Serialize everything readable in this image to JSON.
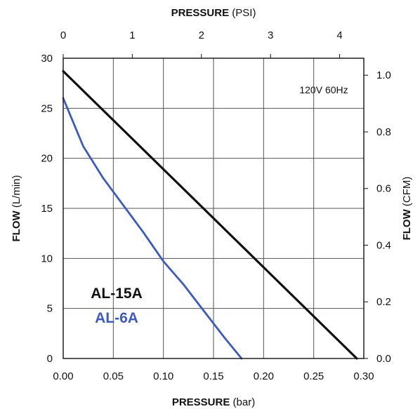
{
  "chart_data": {
    "type": "line",
    "title": "",
    "x_bottom": {
      "label": "PRESSURE",
      "unit": "(bar)",
      "range": [
        0,
        0.3
      ],
      "ticks": [
        "0.00",
        "0.05",
        "0.10",
        "0.15",
        "0.20",
        "0.25",
        "0.30"
      ]
    },
    "x_top": {
      "label": "PRESSURE",
      "unit": "(PSI)",
      "range": [
        0,
        4.35
      ],
      "ticks": [
        {
          "value": 0,
          "label": "0"
        },
        {
          "value": 1,
          "label": "1"
        },
        {
          "value": 2,
          "label": "2"
        },
        {
          "value": 3,
          "label": "3"
        },
        {
          "value": 4,
          "label": "4"
        }
      ]
    },
    "y_left": {
      "label": "FLOW",
      "unit": "(L/min)",
      "range": [
        0,
        30
      ],
      "ticks": [
        "0",
        "5",
        "10",
        "15",
        "20",
        "25",
        "30"
      ]
    },
    "y_right": {
      "label": "FLOW",
      "unit": "(CFM)",
      "range": [
        0,
        1.06
      ],
      "ticks": [
        {
          "value": 0.0,
          "label": "0.0"
        },
        {
          "value": 0.2,
          "label": "0.2"
        },
        {
          "value": 0.4,
          "label": "0.4"
        },
        {
          "value": 0.6,
          "label": "0.6"
        },
        {
          "value": 0.8,
          "label": "0.8"
        },
        {
          "value": 1.0,
          "label": "1.0"
        }
      ]
    },
    "grid": true,
    "legend_position": "lower-left",
    "annotation": "120V 60Hz",
    "series": [
      {
        "name": "AL-15A",
        "color": "#111111",
        "x": [
          0.0,
          0.293
        ],
        "y": [
          28.7,
          0.0
        ]
      },
      {
        "name": "AL-6A",
        "color": "#3A5BC7",
        "x": [
          0.0,
          0.02,
          0.04,
          0.06,
          0.08,
          0.1,
          0.12,
          0.14,
          0.16,
          0.178
        ],
        "y": [
          26.0,
          21.2,
          18.0,
          15.3,
          12.6,
          9.7,
          7.4,
          4.8,
          2.2,
          0.0
        ]
      }
    ]
  }
}
